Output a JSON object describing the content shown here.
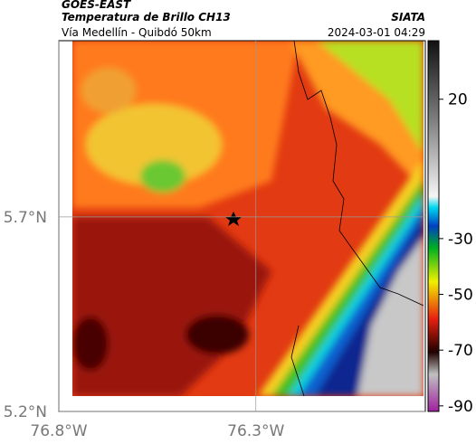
{
  "header": {
    "source": "GOES-EAST",
    "title": "Temperatura de Brillo CH13",
    "brand": "SIATA",
    "subtitle": "Vía Medellín - Quibdó 50km",
    "datetime": "2024-03-01 04:29"
  },
  "map": {
    "xlim": [
      -76.8,
      -75.87
    ],
    "ylim": [
      5.2,
      6.153
    ],
    "xticks": [
      {
        "value": -76.8,
        "label": "76.8°W"
      },
      {
        "value": -76.3,
        "label": "76.3°W"
      }
    ],
    "yticks": [
      {
        "value": 5.2,
        "label": "5.2°N"
      },
      {
        "value": 5.7,
        "label": "5.7°N"
      }
    ]
  },
  "colorbar": {
    "lim": [
      -92,
      41
    ],
    "ticks": [
      20,
      -30,
      -50,
      -70,
      -90
    ]
  }
}
